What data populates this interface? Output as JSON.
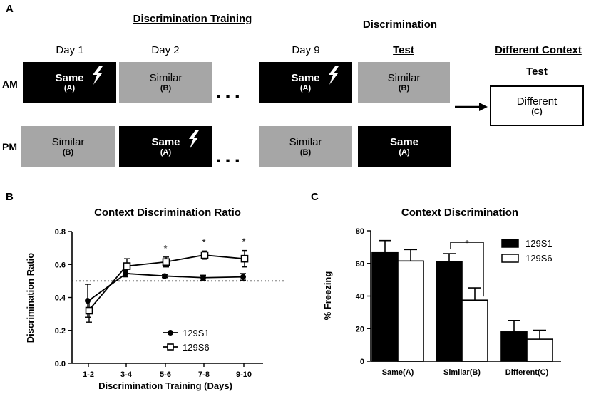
{
  "panel_a": {
    "letter": "A",
    "headers": {
      "training": "Discrimination Training",
      "discrimination": "Discrimination",
      "different_context": "Different Context"
    },
    "days": [
      "Day 1",
      "Day 2",
      "Day 9"
    ],
    "test_label": "Test",
    "test_label_context": "Test",
    "row_am": "AM",
    "row_pm": "PM",
    "boxes": {
      "am_day1": {
        "name": "Same",
        "sub": "(A)"
      },
      "am_day2": {
        "name": "Similar",
        "sub": "(B)"
      },
      "am_day9": {
        "name": "Same",
        "sub": "(A)"
      },
      "am_test": {
        "name": "Similar",
        "sub": "(B)"
      },
      "pm_day1": {
        "name": "Similar",
        "sub": "(B)"
      },
      "pm_day2": {
        "name": "Same",
        "sub": "(A)"
      },
      "pm_day9": {
        "name": "Similar",
        "sub": "(B)"
      },
      "pm_test": {
        "name": "Same",
        "sub": "(A)"
      },
      "context_test": {
        "name": "Different",
        "sub": "(C)"
      }
    },
    "ellipsis": "..."
  },
  "panel_b": {
    "letter": "B",
    "chart_data": {
      "type": "line",
      "title": "Context Discrimination Ratio",
      "xlabel": "Discrimination Training (Days)",
      "ylabel": "Discrimination Ratio",
      "categories": [
        "1-2",
        "3-4",
        "5-6",
        "7-8",
        "9-10"
      ],
      "ylim": [
        0.0,
        0.8
      ],
      "yticks": [
        "0.0",
        "0.2",
        "0.4",
        "0.6",
        "0.8"
      ],
      "reference_line": 0.5,
      "series": [
        {
          "name": "129S1",
          "marker": "filled-circle",
          "values": [
            0.38,
            0.545,
            0.53,
            0.52,
            0.525
          ],
          "errors": [
            0.1,
            0.02,
            0.01,
            0.015,
            0.02
          ]
        },
        {
          "name": "129S6",
          "marker": "open-square",
          "values": [
            0.32,
            0.59,
            0.615,
            0.657,
            0.635
          ],
          "errors": [
            0.07,
            0.045,
            0.03,
            0.025,
            0.05
          ]
        }
      ],
      "significance": [
        "",
        "",
        "*",
        "*",
        "*"
      ],
      "legend": [
        "129S1",
        "129S6"
      ]
    }
  },
  "panel_c": {
    "letter": "C",
    "chart_data": {
      "type": "bar",
      "title": "Context Discrimination",
      "xlabel": "",
      "ylabel": "% Freezing",
      "categories": [
        "Same(A)",
        "Similar(B)",
        "Different(C)"
      ],
      "ylim": [
        0,
        80
      ],
      "yticks": [
        "0",
        "20",
        "40",
        "60",
        "80"
      ],
      "series": [
        {
          "name": "129S1",
          "color": "#000000",
          "values": [
            67,
            61,
            18
          ],
          "errors": [
            7,
            5,
            7
          ]
        },
        {
          "name": "129S6",
          "color": "#ffffff",
          "values": [
            61.5,
            37.5,
            13.5
          ],
          "errors": [
            7,
            7.5,
            5.5
          ]
        }
      ],
      "significance": {
        "category": "Similar(B)",
        "label": "*"
      },
      "legend": [
        "129S1",
        "129S6"
      ]
    }
  }
}
